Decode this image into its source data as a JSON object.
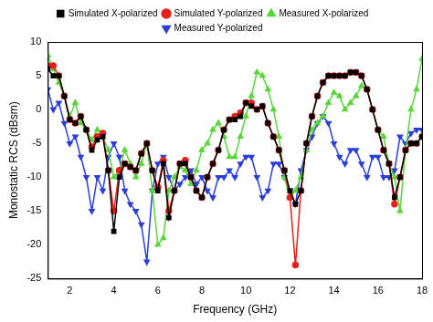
{
  "chart_data": {
    "type": "line",
    "x_label": "Frequency (GHz)",
    "y_label": "Monostatic RCS (dBsm)",
    "x": [
      1,
      1.25,
      1.5,
      1.75,
      2,
      2.25,
      2.5,
      2.75,
      3,
      3.25,
      3.5,
      3.75,
      4,
      4.25,
      4.5,
      4.75,
      5,
      5.25,
      5.5,
      5.75,
      6,
      6.25,
      6.5,
      6.75,
      7,
      7.25,
      7.5,
      7.75,
      8,
      8.25,
      8.5,
      8.75,
      9,
      9.25,
      9.5,
      9.75,
      10,
      10.25,
      10.5,
      10.75,
      11,
      11.25,
      11.5,
      11.75,
      12,
      12.25,
      12.5,
      12.75,
      13,
      13.25,
      13.5,
      13.75,
      14,
      14.25,
      14.5,
      14.75,
      15,
      15.25,
      15.5,
      15.75,
      16,
      16.25,
      16.5,
      16.75,
      17,
      17.25,
      17.5,
      17.75,
      18
    ],
    "series": [
      {
        "name": "Simulated X-polarized",
        "color": "#000000",
        "marker": "square",
        "values": [
          6,
          5,
          5,
          2,
          -1.5,
          -2,
          -1,
          -3,
          -6,
          -4.5,
          -4,
          -9,
          -18,
          -10,
          -8,
          -8.5,
          -9,
          -6.5,
          -5,
          -9,
          -12,
          -8,
          -16,
          -12,
          -8,
          -8,
          -10,
          -12,
          -13,
          -10,
          -8,
          -6,
          -3,
          -1.5,
          -1.5,
          -1,
          1,
          0.5,
          0,
          0.5,
          -2,
          -4,
          -6,
          -9,
          -12,
          -14,
          -12,
          -5,
          -1,
          2,
          4,
          5,
          5,
          5,
          5,
          5.5,
          5.5,
          5,
          3,
          0,
          -3,
          -6,
          -8,
          -13,
          -10,
          -6,
          -5,
          -5,
          -4
        ]
      },
      {
        "name": "Simulated Y-polarized",
        "color": "#e8201c",
        "marker": "circle",
        "values": [
          6.5,
          6.5,
          5,
          2,
          -1.5,
          -2,
          -1,
          -3,
          -5.5,
          -4,
          -3.5,
          -9,
          -15,
          -9,
          -8,
          -8.5,
          -9,
          -6.5,
          -5,
          -9,
          -11.5,
          -7.5,
          -15,
          -12,
          -8,
          -7.5,
          -10,
          -12,
          -13,
          -10,
          -8,
          -6,
          -3,
          -1.5,
          -1,
          -0.5,
          1,
          1,
          0,
          0.5,
          -2,
          -4,
          -6,
          -9,
          -13,
          -23,
          -12,
          -5,
          -1,
          2,
          4,
          5,
          5,
          5,
          5,
          5.5,
          5.5,
          5,
          3,
          0,
          -3,
          -6,
          -8,
          -14,
          -10,
          -6,
          -5,
          -5,
          -4
        ]
      },
      {
        "name": "Measured X-polarized",
        "color": "#58d63a",
        "marker": "triangle-up",
        "values": [
          8,
          6,
          4,
          2,
          -1,
          1,
          -2,
          -3,
          -4.5,
          -3,
          -4,
          -6,
          -10,
          -9,
          -6,
          -8,
          -10,
          -8,
          -5,
          -12,
          -20,
          -19,
          -12,
          -10,
          -8.5,
          -9,
          -11,
          -9,
          -6,
          -5,
          -3,
          -2,
          -4,
          -7,
          -7,
          -4,
          -1,
          2,
          5.5,
          5,
          3,
          0,
          -4,
          -10,
          -13,
          -12,
          -10,
          -6,
          -3,
          -2,
          -1,
          1,
          2.5,
          2,
          0,
          1,
          2,
          3.5,
          3,
          0,
          -3,
          -4,
          -8,
          -10,
          -15,
          -6,
          0,
          3,
          7.5
        ]
      },
      {
        "name": "Measured Y-polarized",
        "color": "#2a3fd8",
        "marker": "triangle-down",
        "values": [
          3,
          0,
          1,
          -2,
          -5,
          -4,
          -7,
          -10,
          -15,
          -10,
          -12,
          -7,
          -5,
          -7,
          -12,
          -14,
          -15,
          -17,
          -22.5,
          -12,
          -8,
          -7,
          -10,
          -12,
          -11,
          -10,
          -9,
          -11,
          -10,
          -12,
          -13,
          -10,
          -10,
          -9,
          -10,
          -8,
          -7,
          -7,
          -10,
          -13,
          -12,
          -8,
          -8,
          -10,
          -12,
          -14,
          -9,
          -6,
          -4,
          -2,
          -1,
          -2,
          -5,
          -7,
          -8,
          -6,
          -6,
          -8,
          -10,
          -7,
          -7,
          -10,
          -10,
          -9,
          -4,
          -5,
          -3.5,
          -3,
          -3
        ]
      }
    ],
    "xlim": [
      1,
      18
    ],
    "xticks": [
      2,
      4,
      6,
      8,
      10,
      12,
      14,
      16,
      18
    ],
    "ylim": [
      -25,
      10
    ],
    "yticks": [
      -25,
      -20,
      -15,
      -10,
      -5,
      0,
      5,
      10
    ],
    "grid": false,
    "legend": "top"
  }
}
